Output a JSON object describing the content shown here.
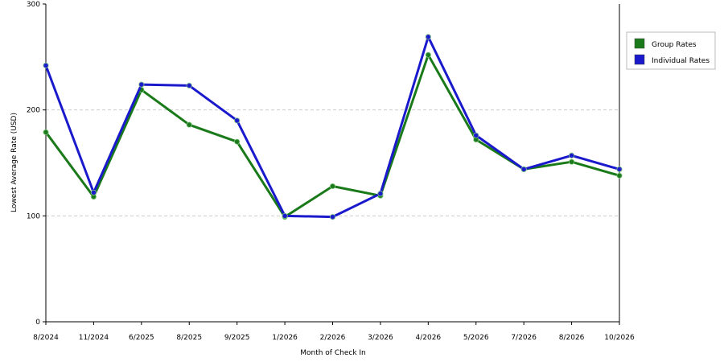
{
  "chart_data": {
    "type": "line",
    "x_label": "Month of Check In",
    "y_label": "Lowest Average Rate (USD)",
    "categories": [
      "8/2024",
      "11/2024",
      "6/2025",
      "8/2025",
      "9/2025",
      "1/2026",
      "2/2026",
      "3/2026",
      "4/2026",
      "5/2026",
      "7/2026",
      "8/2026",
      "10/2026"
    ],
    "series": [
      {
        "name": "Group Rates",
        "color": "#1a7a1a",
        "values": [
          179,
          118,
          219,
          186,
          170,
          99,
          128,
          119,
          252,
          172,
          144,
          151,
          138
        ]
      },
      {
        "name": "Individual Rates",
        "color": "#1a1acc",
        "values": [
          242,
          122,
          224,
          223,
          190,
          100,
          99,
          121,
          269,
          176,
          144,
          157,
          144
        ]
      }
    ],
    "ylim": [
      0,
      300
    ],
    "yticks": [
      0,
      100,
      200,
      300
    ],
    "grid": true,
    "legend": "right"
  }
}
